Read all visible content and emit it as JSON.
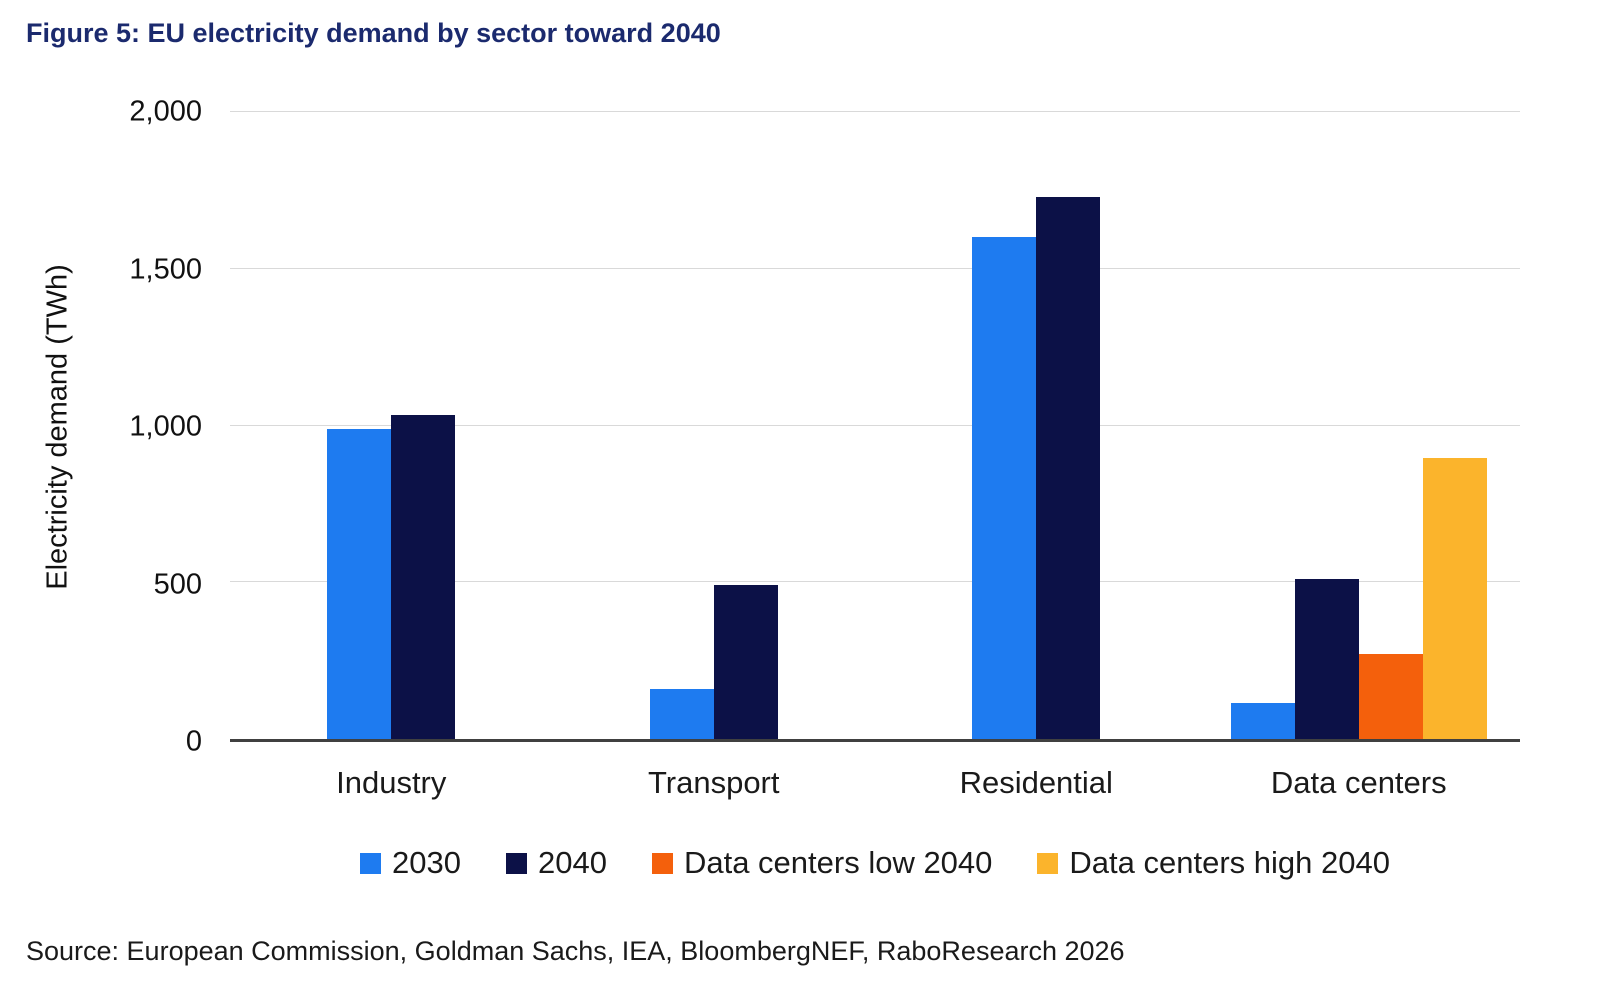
{
  "title": "Figure 5: EU electricity demand by sector toward 2040",
  "source": "Source: European Commission, Goldman Sachs, IEA, BloombergNEF, RaboResearch 2026",
  "colors": {
    "title_navy": "#1B2A6E",
    "gridline": "#d9d9d9",
    "axis": "#404040"
  },
  "chart_data": {
    "type": "bar",
    "title": "Figure 5: EU electricity demand by sector toward 2040",
    "xlabel": "",
    "ylabel": "Electricity demand (TWh)",
    "ylim": [
      0,
      2000
    ],
    "yticks": [
      0,
      500,
      1000,
      1500,
      2000
    ],
    "ytick_labels": [
      "0",
      "500",
      "1,000",
      "1,500",
      "2,000"
    ],
    "grid": true,
    "legend_position": "bottom",
    "categories": [
      "Industry",
      "Transport",
      "Residential",
      "Data centers"
    ],
    "series": [
      {
        "name": "2030",
        "color": "#1E7BF0",
        "values": [
          990,
          160,
          1600,
          115
        ]
      },
      {
        "name": "2040",
        "color": "#0C1147",
        "values": [
          1035,
          490,
          1730,
          510
        ]
      },
      {
        "name": "Data centers low 2040",
        "color": "#F4600C",
        "values": [
          null,
          null,
          null,
          270
        ]
      },
      {
        "name": "Data centers high 2040",
        "color": "#FBB42C",
        "values": [
          null,
          null,
          null,
          895
        ]
      }
    ]
  }
}
